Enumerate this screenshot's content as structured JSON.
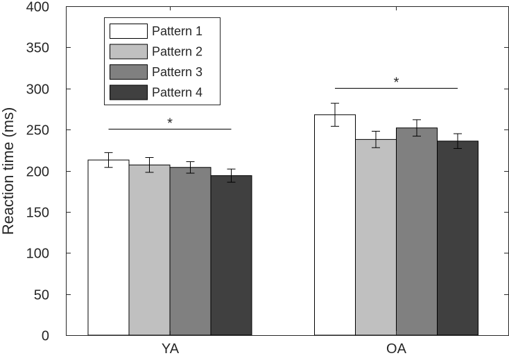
{
  "chart_data": {
    "type": "bar",
    "title": "",
    "xlabel": "",
    "ylabel": "Reaction time (ms)",
    "ylim": [
      0,
      400
    ],
    "yticks": [
      0,
      50,
      100,
      150,
      200,
      250,
      300,
      350,
      400
    ],
    "ytick_labels": [
      "0",
      "50",
      "100",
      "150",
      "200",
      "250",
      "300",
      "350",
      "400"
    ],
    "grid": false,
    "legend_position": "top-left",
    "categories": [
      "YA",
      "OA"
    ],
    "series": [
      {
        "name": "Pattern 1",
        "color": "#ffffff",
        "values": [
          213,
          268
        ],
        "errors": [
          9,
          14
        ]
      },
      {
        "name": "Pattern 2",
        "color": "#c0c0c0",
        "values": [
          207,
          238
        ],
        "errors": [
          9,
          10
        ]
      },
      {
        "name": "Pattern 3",
        "color": "#808080",
        "values": [
          204,
          252
        ],
        "errors": [
          7,
          10
        ]
      },
      {
        "name": "Pattern 4",
        "color": "#404040",
        "values": [
          194,
          236
        ],
        "errors": [
          8,
          9
        ]
      }
    ],
    "significance": [
      {
        "category": "YA",
        "from_series": 0,
        "to_series": 3,
        "label": "*",
        "value": 251
      },
      {
        "category": "OA",
        "from_series": 0,
        "to_series": 3,
        "label": "*",
        "value": 301
      }
    ]
  }
}
